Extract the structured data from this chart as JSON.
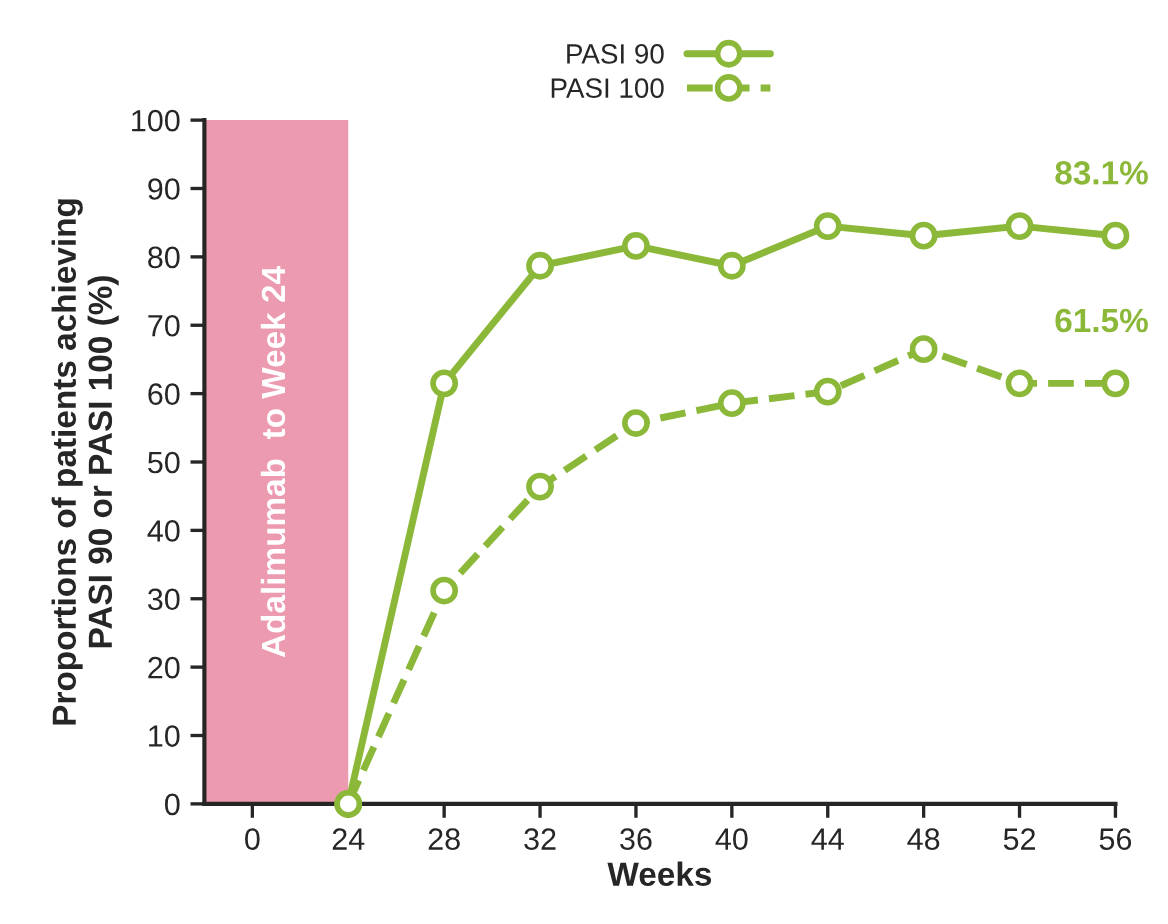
{
  "chart_data": {
    "type": "line",
    "xlabel": "Weeks",
    "ylabel": "Proportions of patients achieving\nPASI 90 or PASI 100 (%)",
    "categories": [
      "0",
      "24",
      "28",
      "32",
      "36",
      "40",
      "44",
      "48",
      "52",
      "56"
    ],
    "series": [
      {
        "name": "PASI 90",
        "color": "#8cb83a",
        "line_style": "solid",
        "values": [
          null,
          0,
          61.5,
          78.7,
          81.6,
          78.7,
          84.5,
          83.1,
          84.5,
          83.1
        ]
      },
      {
        "name": "PASI 100",
        "color": "#8cb83a",
        "line_style": "dashed",
        "values": [
          null,
          0,
          31.2,
          46.4,
          55.7,
          58.6,
          60.3,
          66.5,
          61.5,
          61.5
        ]
      }
    ],
    "ylim": [
      0,
      100
    ],
    "yticks": [
      0,
      10,
      20,
      30,
      40,
      50,
      60,
      70,
      80,
      90,
      100
    ],
    "bands": [
      {
        "axis": "x",
        "from": "0",
        "to": "24",
        "label": "Adalimumab  to Week 24",
        "color": "#ec9ab0"
      }
    ],
    "annotations": [
      {
        "text": "83.1%",
        "x": "56",
        "y": 83.1
      },
      {
        "text": "61.5%",
        "x": "56",
        "y": 61.5
      }
    ],
    "marker": "circle",
    "legend": "top",
    "grid": false
  }
}
